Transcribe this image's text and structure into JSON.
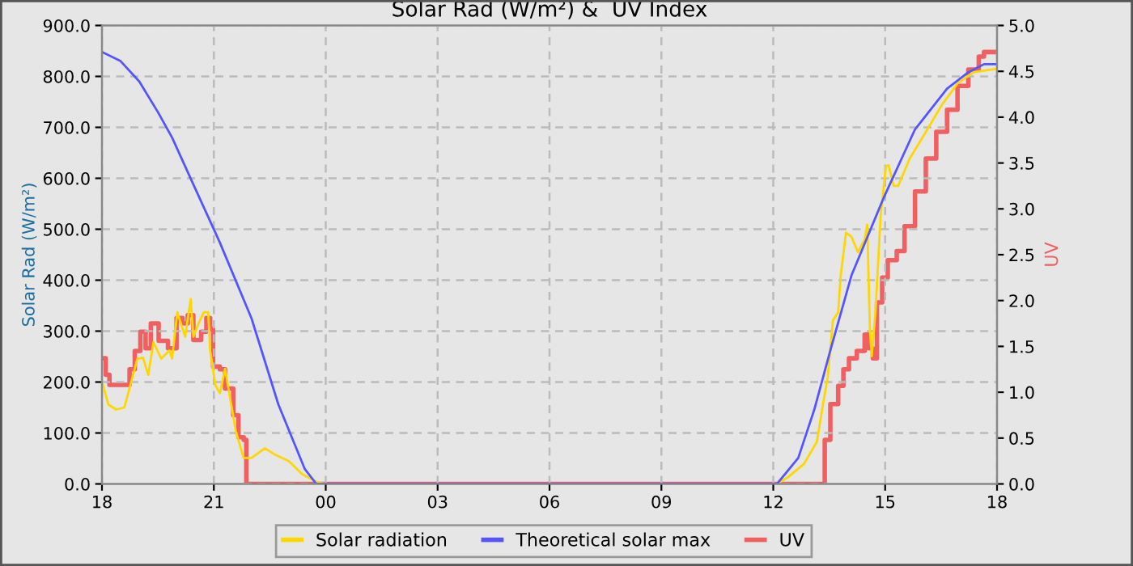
{
  "chart_data": {
    "type": "line",
    "title": "Solar Rad (W/m²) &  UV Index",
    "ylabel": "Solar Rad (W/m²)",
    "y2label": "UV",
    "xlim": [
      18,
      42
    ],
    "xticks": [
      {
        "value": 18,
        "label": "18"
      },
      {
        "value": 21,
        "label": "21"
      },
      {
        "value": 24,
        "label": "00"
      },
      {
        "value": 27,
        "label": "03"
      },
      {
        "value": 30,
        "label": "06"
      },
      {
        "value": 33,
        "label": "09"
      },
      {
        "value": 36,
        "label": "12"
      },
      {
        "value": 39,
        "label": "15"
      },
      {
        "value": 42,
        "label": "18"
      }
    ],
    "ylim": [
      0,
      900
    ],
    "yticks": [
      {
        "value": 0,
        "label": "0.0"
      },
      {
        "value": 100,
        "label": "100.0"
      },
      {
        "value": 200,
        "label": "200.0"
      },
      {
        "value": 300,
        "label": "300.0"
      },
      {
        "value": 400,
        "label": "400.0"
      },
      {
        "value": 500,
        "label": "500.0"
      },
      {
        "value": 600,
        "label": "600.0"
      },
      {
        "value": 700,
        "label": "700.0"
      },
      {
        "value": 800,
        "label": "800.0"
      },
      {
        "value": 900,
        "label": "900.0"
      }
    ],
    "y2lim": [
      0,
      5
    ],
    "y2ticks": [
      {
        "value": 0,
        "label": "0.0"
      },
      {
        "value": 0.5,
        "label": "0.5"
      },
      {
        "value": 1,
        "label": "1.0"
      },
      {
        "value": 1.5,
        "label": "1.5"
      },
      {
        "value": 2,
        "label": "2.0"
      },
      {
        "value": 2.5,
        "label": "2.5"
      },
      {
        "value": 3,
        "label": "3.0"
      },
      {
        "value": 3.5,
        "label": "3.5"
      },
      {
        "value": 4,
        "label": "4.0"
      },
      {
        "value": 4.5,
        "label": "4.5"
      },
      {
        "value": 5,
        "label": "5.0"
      }
    ],
    "grid": true,
    "legend": "bottom",
    "marker": "none",
    "series": [
      {
        "name": "Solar radiation",
        "color": "#ffd700",
        "x": [
          18.03,
          18.17,
          18.38,
          18.6,
          18.74,
          18.95,
          19.1,
          19.24,
          19.38,
          19.59,
          19.81,
          19.88,
          20.02,
          20.23,
          20.38,
          20.45,
          20.59,
          20.73,
          20.85,
          20.9,
          21.04,
          21.16,
          21.3,
          21.59,
          21.8,
          22.01,
          22.37,
          22.65,
          23.01,
          23.37,
          23.79,
          24.0,
          36.1,
          36.39,
          36.82,
          37.17,
          37.31,
          37.46,
          37.6,
          37.74,
          37.81,
          37.95,
          38.1,
          38.27,
          38.45,
          38.52,
          38.59,
          38.64,
          38.74,
          38.88,
          39.02,
          39.09,
          39.23,
          39.35,
          39.66,
          40.09,
          40.52,
          40.94,
          41.37,
          41.8,
          42.0
        ],
        "values": [
          194,
          156,
          146,
          150,
          188,
          246,
          248,
          214,
          278,
          246,
          262,
          246,
          337,
          289,
          363,
          289,
          315,
          337,
          337,
          262,
          194,
          178,
          226,
          103,
          51,
          51,
          70,
          57,
          45,
          19,
          3,
          0,
          0,
          13,
          39,
          83,
          146,
          210,
          321,
          337,
          410,
          493,
          485,
          455,
          480,
          509,
          305,
          251,
          337,
          528,
          623,
          626,
          585,
          585,
          639,
          691,
          744,
          786,
          808,
          813,
          815
        ]
      },
      {
        "name": "Theoretical solar max",
        "color": "#5555ff",
        "x": [
          18,
          18.5,
          19,
          19.5,
          19.88,
          20.5,
          21.16,
          22.01,
          22.73,
          23.44,
          23.75,
          36.1,
          36.67,
          37.1,
          37.53,
          38.1,
          38.95,
          39.8,
          40.66,
          41.23,
          41.65,
          42.0
        ],
        "values": [
          848,
          830,
          790,
          730,
          680,
          580,
          474,
          325,
          156,
          29,
          0,
          0,
          51,
          146,
          262,
          410,
          560,
          696,
          776,
          808,
          824,
          824
        ]
      },
      {
        "name": "UV",
        "color": "#f06060",
        "type": "step",
        "axis": "y2",
        "x": [
          18.03,
          18.1,
          18.2,
          18.74,
          18.88,
          19.03,
          19.17,
          19.31,
          19.52,
          19.77,
          20.0,
          20.16,
          20.3,
          20.45,
          20.66,
          20.8,
          20.9,
          20.98,
          21.16,
          21.3,
          21.52,
          21.66,
          21.8,
          21.87,
          37.31,
          37.38,
          37.53,
          37.74,
          37.88,
          38.03,
          38.24,
          38.45,
          38.56,
          38.67,
          38.78,
          38.92,
          39.07,
          39.31,
          39.52,
          39.8,
          40.09,
          40.37,
          40.66,
          40.94,
          41.23,
          41.51,
          41.65,
          42.0
        ],
        "values": [
          1.37,
          1.19,
          1.08,
          1.25,
          1.45,
          1.66,
          1.48,
          1.75,
          1.56,
          1.48,
          1.81,
          1.75,
          1.84,
          1.57,
          1.66,
          1.81,
          1.69,
          1.28,
          1.25,
          1.04,
          0.75,
          0.51,
          0.48,
          0,
          0,
          0.48,
          0.87,
          1.07,
          1.25,
          1.37,
          1.45,
          1.63,
          1.48,
          1.37,
          1.98,
          2.25,
          2.44,
          2.54,
          2.81,
          3.19,
          3.55,
          3.84,
          4.08,
          4.34,
          4.52,
          4.66,
          4.71,
          4.71
        ]
      }
    ]
  }
}
